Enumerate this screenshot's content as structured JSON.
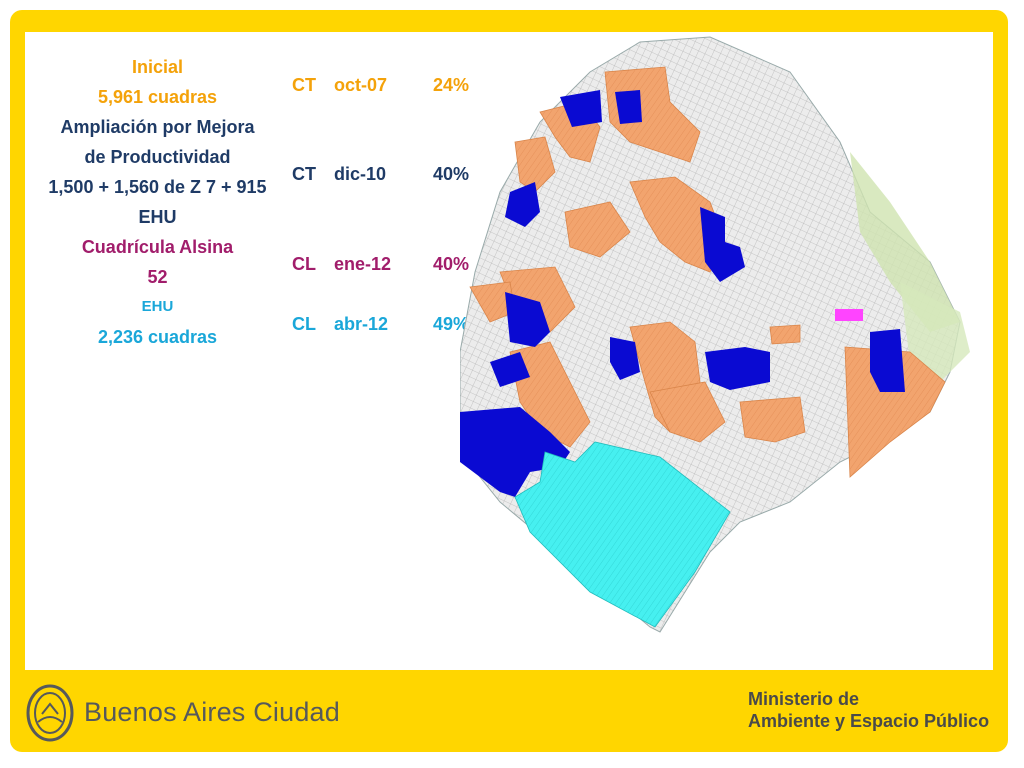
{
  "legend": {
    "inicial": {
      "title": "Inicial",
      "count": "5,961 cuadras",
      "code": "CT",
      "date": "oct-07",
      "percent": "24%"
    },
    "ampliacion": {
      "title_line1": "Ampliación por Mejora",
      "title_line2": "de Productividad",
      "detail_line1": "1,500 + 1,560 de Z 7 + 915",
      "detail_line2": "EHU",
      "code": "CT",
      "date": "dic-10",
      "percent": "40%"
    },
    "alsina": {
      "title": "Cuadrícula Alsina",
      "count": "52",
      "code": "CL",
      "date": "ene-12",
      "percent": "40%"
    },
    "ehu": {
      "title": "EHU",
      "count": "2,236 cuadras",
      "code": "CL",
      "date": "abr-12",
      "percent": "49%"
    }
  },
  "colors": {
    "frame": "#ffd600",
    "inicial": "#f4a20a",
    "ampliacion": "#1f3b66",
    "alsina": "#a11d6b",
    "ehu": "#1aa7d9",
    "zone_orange": "#f2a46e",
    "zone_blue": "#0a0ad2",
    "zone_cyan": "#46f0f0",
    "zone_magenta": "#ff44ff"
  },
  "footer": {
    "brand": "Buenos Aires Ciudad",
    "ministry_line1": "Ministerio de",
    "ministry_line2": "Ambiente y Espacio Público",
    "logo_icon": "city-shield-logo-icon"
  }
}
